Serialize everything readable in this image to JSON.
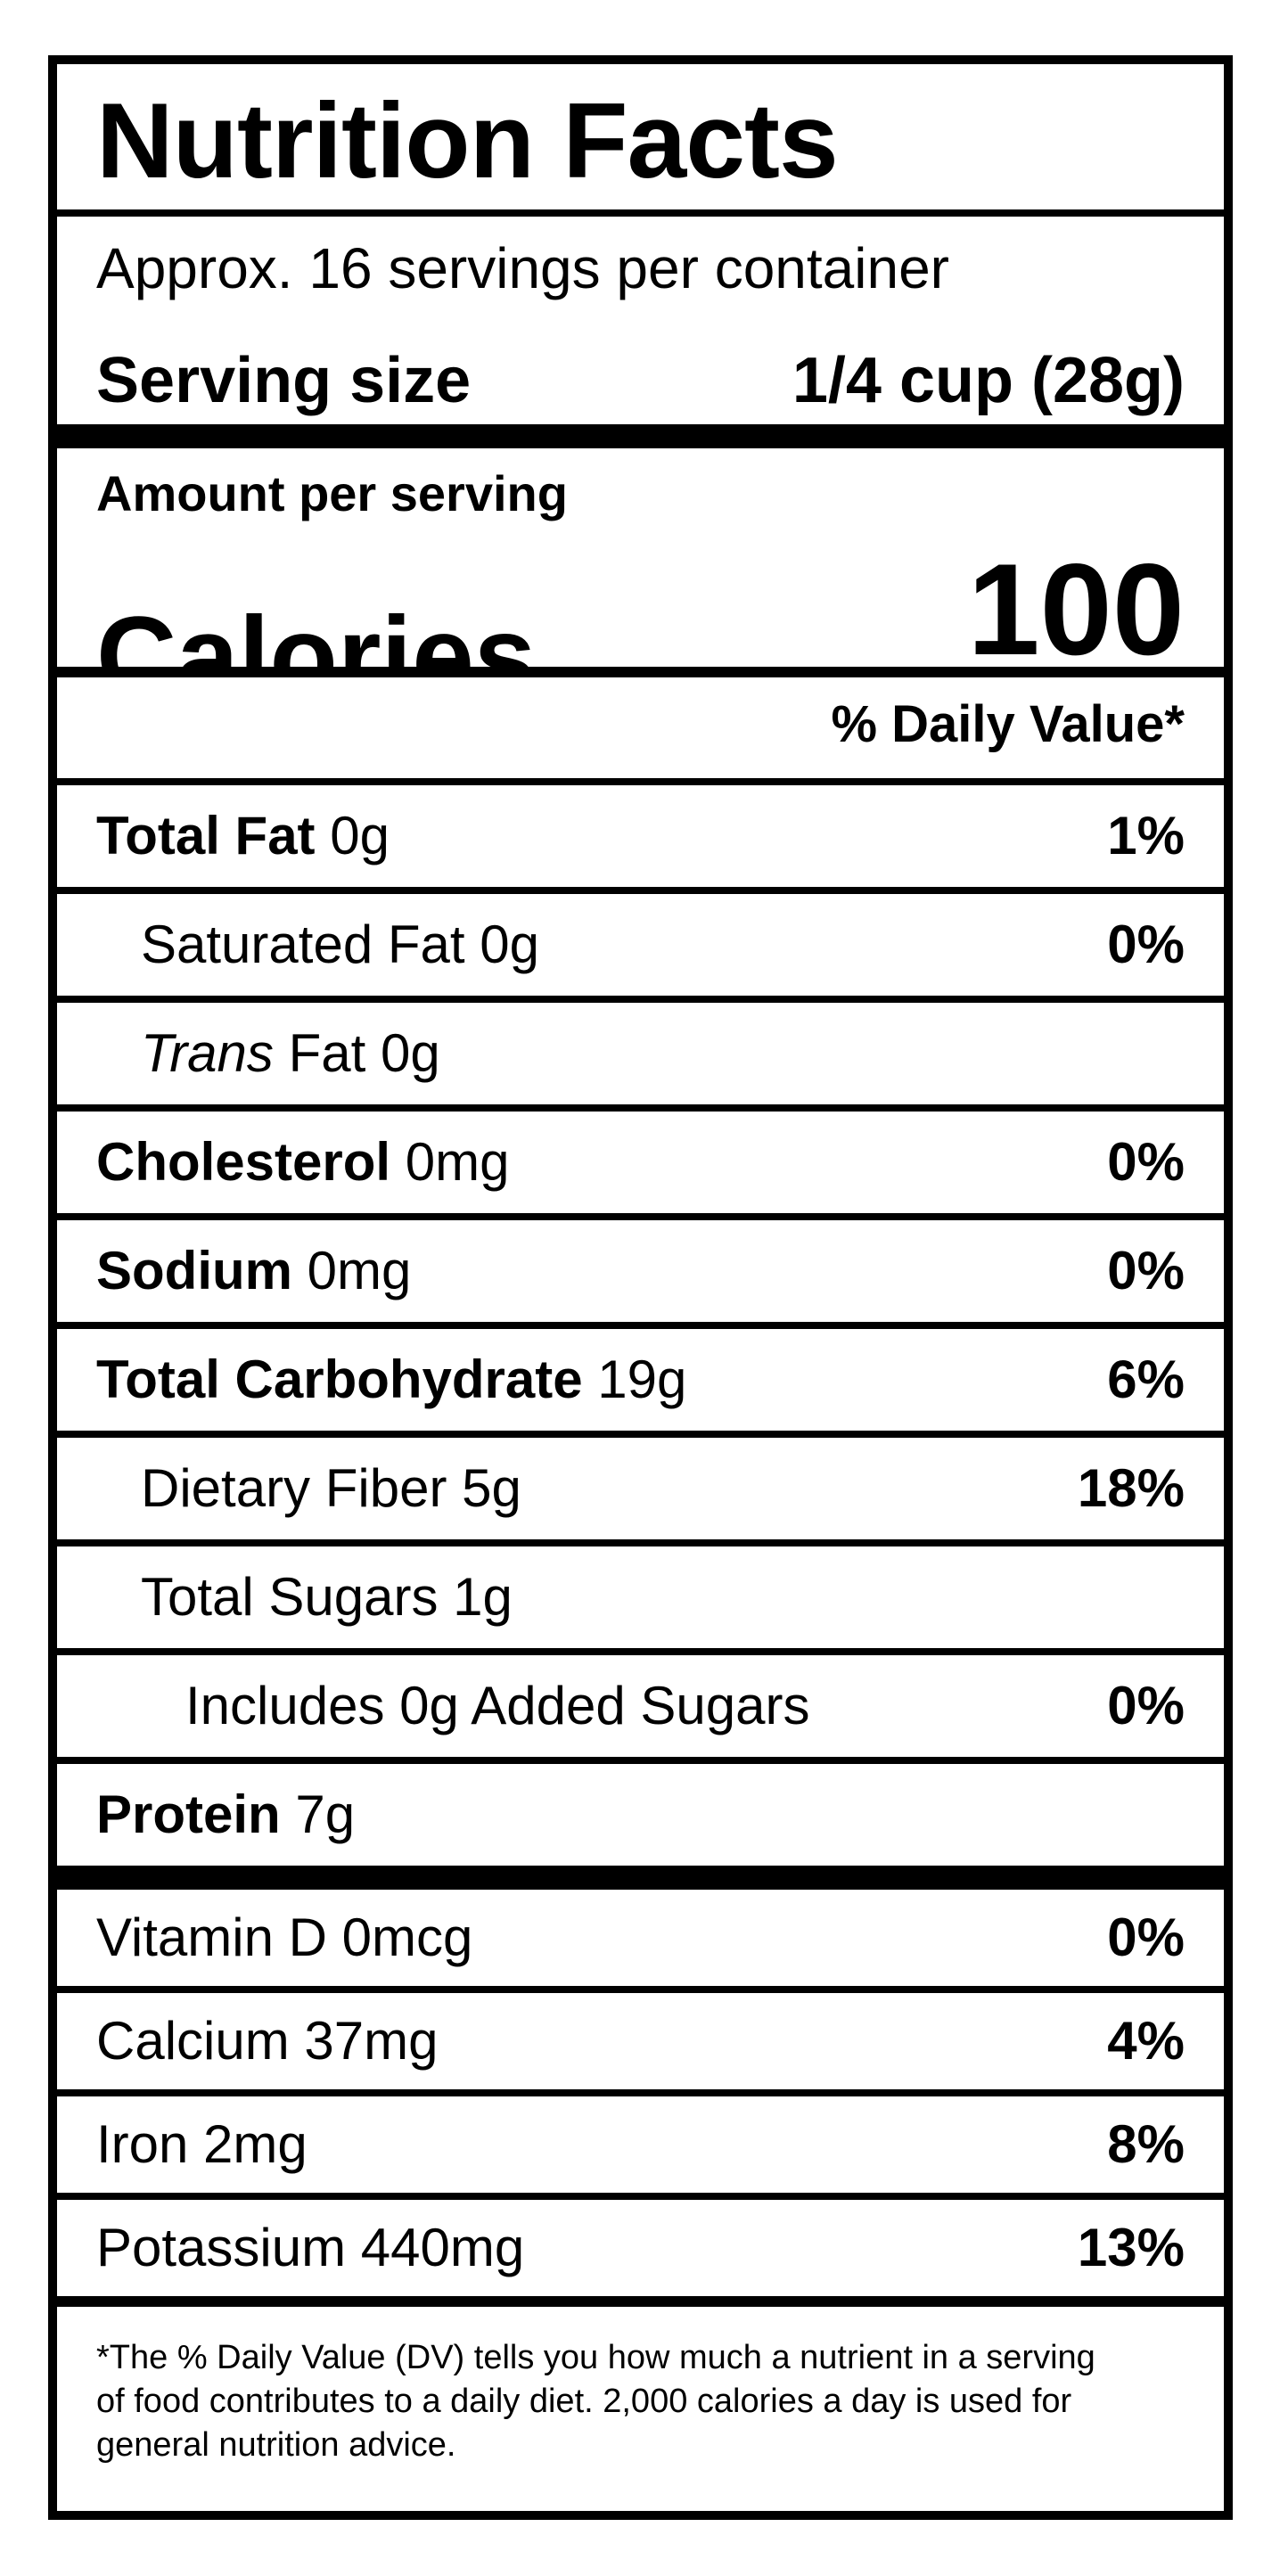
{
  "label": {
    "title": "Nutrition Facts",
    "servings_per_container": "Approx. 16 servings per container",
    "serving_size": {
      "label": "Serving size",
      "value": "1/4 cup (28g)"
    },
    "amount_per_serving": "Amount per serving",
    "calories": {
      "label": "Calories",
      "value": "100"
    },
    "daily_value_header": "% Daily Value*",
    "nutrients": [
      {
        "key": "total-fat",
        "lead": "Total Fat",
        "lead_style": "bold",
        "rest": " 0g",
        "dv": "1%",
        "indent": 0
      },
      {
        "key": "saturated-fat",
        "lead": "",
        "lead_style": "none",
        "rest": "Saturated Fat 0g",
        "dv": "0%",
        "indent": 1
      },
      {
        "key": "trans-fat",
        "lead": "Trans",
        "lead_style": "italic",
        "rest": " Fat 0g",
        "dv": "",
        "indent": 1
      },
      {
        "key": "cholesterol",
        "lead": "Cholesterol",
        "lead_style": "bold",
        "rest": " 0mg",
        "dv": "0%",
        "indent": 0
      },
      {
        "key": "sodium",
        "lead": "Sodium",
        "lead_style": "bold",
        "rest": " 0mg",
        "dv": "0%",
        "indent": 0
      },
      {
        "key": "total-carbohydrate",
        "lead": "Total Carbohydrate",
        "lead_style": "bold",
        "rest": " 19g",
        "dv": "6%",
        "indent": 0
      },
      {
        "key": "dietary-fiber",
        "lead": "",
        "lead_style": "none",
        "rest": "Dietary Fiber 5g",
        "dv": "18%",
        "indent": 1
      },
      {
        "key": "total-sugars",
        "lead": "",
        "lead_style": "none",
        "rest": "Total Sugars 1g",
        "dv": "",
        "indent": 1
      },
      {
        "key": "added-sugars",
        "lead": "",
        "lead_style": "none",
        "rest": "Includes 0g Added Sugars",
        "dv": "0%",
        "indent": 2
      },
      {
        "key": "protein",
        "lead": "Protein",
        "lead_style": "bold",
        "rest": " 7g",
        "dv": "",
        "indent": 0,
        "last": true
      }
    ],
    "vitamins": [
      {
        "key": "vitamin-d",
        "lead": "",
        "lead_style": "none",
        "rest": "Vitamin D 0mcg",
        "dv": "0%",
        "indent": 0
      },
      {
        "key": "calcium",
        "lead": "",
        "lead_style": "none",
        "rest": "Calcium 37mg",
        "dv": "4%",
        "indent": 0
      },
      {
        "key": "iron",
        "lead": "",
        "lead_style": "none",
        "rest": "Iron 2mg",
        "dv": "8%",
        "indent": 0
      },
      {
        "key": "potassium",
        "lead": "",
        "lead_style": "none",
        "rest": "Potassium 440mg",
        "dv": "13%",
        "indent": 0,
        "last": true
      }
    ],
    "footnote_lines": [
      "*The % Daily Value (DV) tells you how much a nutrient in a serving",
      "of food contributes to a daily diet. 2,000 calories a day is used for",
      "general nutrition advice."
    ],
    "colors": {
      "ink": "#000000",
      "paper": "#ffffff"
    }
  }
}
